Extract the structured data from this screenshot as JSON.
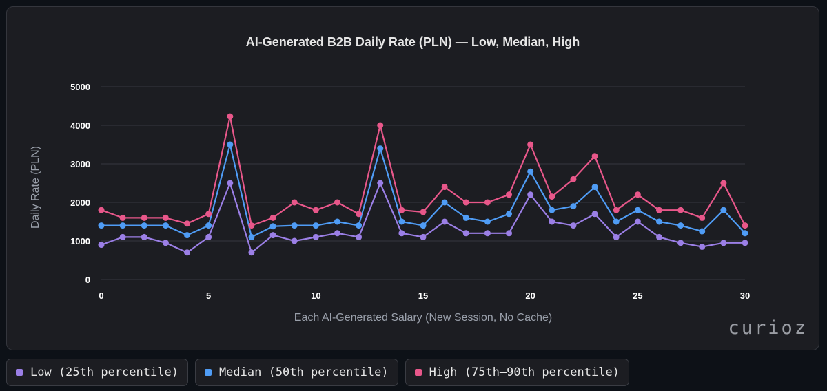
{
  "chart_data": {
    "type": "line",
    "title": "AI-Generated B2B Daily Rate (PLN) — Low, Median, High",
    "xlabel": "Each AI-Generated Salary (New Session, No Cache)",
    "ylabel": "Daily Rate (PLN)",
    "xlim": [
      0,
      30
    ],
    "ylim": [
      0,
      5000
    ],
    "x_ticks": [
      0,
      5,
      10,
      15,
      20,
      25,
      30
    ],
    "y_ticks": [
      0,
      1000,
      2000,
      3000,
      4000,
      5000
    ],
    "grid": "horizontal",
    "legend_position": "bottom-left",
    "x": [
      0,
      1,
      2,
      3,
      4,
      5,
      6,
      7,
      8,
      9,
      10,
      11,
      12,
      13,
      14,
      15,
      16,
      17,
      18,
      19,
      20,
      21,
      22,
      23,
      24,
      25,
      26,
      27,
      28,
      29,
      30
    ],
    "series": [
      {
        "name": "Low (25th percentile)",
        "color": "#9b7fe6",
        "values": [
          900,
          1100,
          1100,
          950,
          700,
          1100,
          2500,
          700,
          1150,
          1000,
          1100,
          1200,
          1100,
          2500,
          1200,
          1100,
          1500,
          1200,
          1200,
          1200,
          2200,
          1500,
          1400,
          1700,
          1100,
          1500,
          1100,
          950,
          850,
          950,
          950
        ]
      },
      {
        "name": "Median (50th percentile)",
        "color": "#4f9cf5",
        "values": [
          1400,
          1400,
          1400,
          1400,
          1150,
          1400,
          3500,
          1100,
          1380,
          1400,
          1400,
          1500,
          1400,
          3400,
          1500,
          1400,
          2000,
          1600,
          1500,
          1700,
          2800,
          1800,
          1900,
          2400,
          1500,
          1800,
          1500,
          1400,
          1250,
          1800,
          1200
        ]
      },
      {
        "name": "High (75th–90th percentile)",
        "color": "#e8578a",
        "values": [
          1800,
          1600,
          1600,
          1600,
          1450,
          1700,
          4230,
          1400,
          1600,
          2000,
          1800,
          2000,
          1700,
          4000,
          1800,
          1750,
          2400,
          2000,
          2000,
          2200,
          3500,
          2150,
          2600,
          3200,
          1800,
          2200,
          1800,
          1800,
          1600,
          2500,
          1400
        ]
      }
    ]
  },
  "watermark": "curioz"
}
